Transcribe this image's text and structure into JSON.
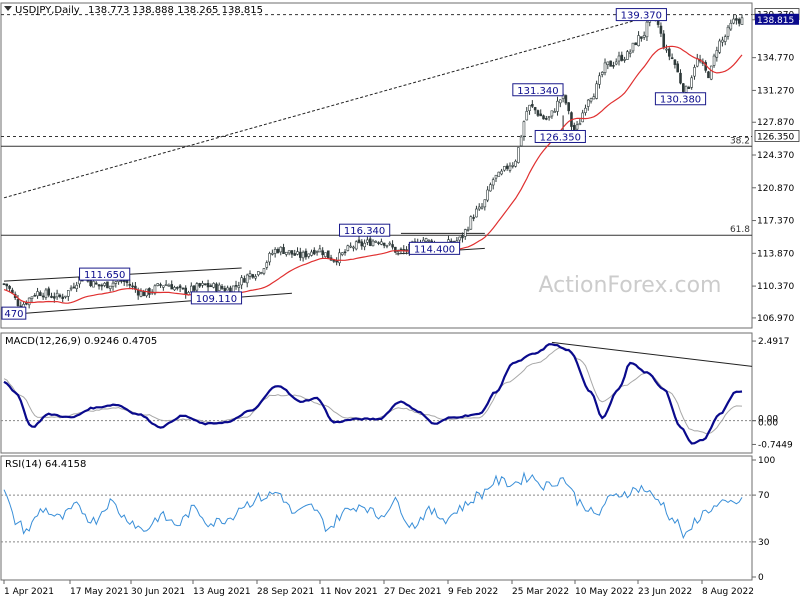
{
  "header": {
    "symbol": "USDJPY,Daily",
    "ohlc": "138.773 138.888 138.265 138.815",
    "watermark": "ActionForex.com"
  },
  "colors": {
    "up": "#2f3a3a",
    "ma": "#e03030",
    "macd": "#0a0a8c",
    "signal": "#a8a8a8",
    "rsi": "#3a8fd8",
    "hline": "#333333",
    "price_box": "#0a0a8c",
    "label_box_border": "#1a1a8a"
  },
  "chart_data": [
    {
      "type": "candlestick",
      "title": "USDJPY,Daily",
      "ylim": [
        106.0,
        140.5
      ],
      "yticks": [
        "139.370",
        "138.815",
        "134.770",
        "131.270",
        "127.870",
        "124.370",
        "120.870",
        "117.370",
        "113.870",
        "110.370",
        "106.970"
      ],
      "ytick_values": [
        139.37,
        138.815,
        134.77,
        131.27,
        127.87,
        124.37,
        120.87,
        117.37,
        113.87,
        110.37,
        106.97
      ],
      "current_price": "138.815",
      "xticks": [
        "1 Apr 2021",
        "17 May 2021",
        "30 Jun 2021",
        "13 Aug 2021",
        "28 Sep 2021",
        "11 Nov 2021",
        "27 Dec 2021",
        "9 Feb 2022",
        "25 Mar 2022",
        "10 May 2022",
        "23 Jun 2022",
        "8 Aug 2022"
      ],
      "anchors": [
        {
          "i": 0,
          "v": 110.6
        },
        {
          "i": 6,
          "v": 108.4
        },
        {
          "i": 12,
          "v": 109.7
        },
        {
          "i": 20,
          "v": 109.2
        },
        {
          "i": 28,
          "v": 111.2
        },
        {
          "i": 34,
          "v": 110.4
        },
        {
          "i": 42,
          "v": 110.9
        },
        {
          "i": 50,
          "v": 109.6
        },
        {
          "i": 58,
          "v": 110.6
        },
        {
          "i": 64,
          "v": 109.8
        },
        {
          "i": 72,
          "v": 110.4
        },
        {
          "i": 80,
          "v": 110.1
        },
        {
          "i": 90,
          "v": 111.8
        },
        {
          "i": 98,
          "v": 114.3
        },
        {
          "i": 106,
          "v": 113.6
        },
        {
          "i": 112,
          "v": 114.3
        },
        {
          "i": 118,
          "v": 113.3
        },
        {
          "i": 126,
          "v": 114.7
        },
        {
          "i": 134,
          "v": 115.3
        },
        {
          "i": 142,
          "v": 114.0
        },
        {
          "i": 150,
          "v": 115.3
        },
        {
          "i": 156,
          "v": 114.6
        },
        {
          "i": 162,
          "v": 115.2
        },
        {
          "i": 170,
          "v": 118.5
        },
        {
          "i": 176,
          "v": 122.0
        },
        {
          "i": 182,
          "v": 123.5
        },
        {
          "i": 188,
          "v": 129.5
        },
        {
          "i": 194,
          "v": 128.2
        },
        {
          "i": 200,
          "v": 130.5
        },
        {
          "i": 204,
          "v": 127.0
        },
        {
          "i": 210,
          "v": 130.8
        },
        {
          "i": 216,
          "v": 134.0
        },
        {
          "i": 222,
          "v": 134.9
        },
        {
          "i": 228,
          "v": 137.0
        },
        {
          "i": 232,
          "v": 139.3
        },
        {
          "i": 238,
          "v": 135.0
        },
        {
          "i": 244,
          "v": 131.3
        },
        {
          "i": 248,
          "v": 134.5
        },
        {
          "i": 252,
          "v": 133.0
        },
        {
          "i": 256,
          "v": 136.4
        },
        {
          "i": 262,
          "v": 138.8
        }
      ],
      "levels": [
        {
          "value": 139.37,
          "style": "dashed",
          "label": "139.370"
        },
        {
          "value": 126.35,
          "style": "dashed",
          "label": "126.350"
        },
        {
          "value": 125.3,
          "style": "solid",
          "label": "38.2"
        },
        {
          "value": 115.8,
          "style": "solid",
          "label": "61.8"
        }
      ],
      "annotations": [
        {
          "text": "139.370",
          "i": 228,
          "v": 139.37
        },
        {
          "text": "131.340",
          "i": 191,
          "v": 131.34
        },
        {
          "text": "130.380",
          "i": 242,
          "v": 130.38
        },
        {
          "text": "126.350",
          "i": 199,
          "v": 126.35
        },
        {
          "text": "116.340",
          "i": 129,
          "v": 116.34
        },
        {
          "text": "114.400",
          "i": 154,
          "v": 114.4
        },
        {
          "text": "111.650",
          "i": 36,
          "v": 111.65
        },
        {
          "text": "109.110",
          "i": 76,
          "v": 109.11
        },
        {
          "text": "470",
          "i": 3,
          "v": 107.48
        }
      ]
    },
    {
      "type": "line",
      "title": "MACD(12,26,9) 0.9246 0.4705",
      "ylim": [
        -0.95,
        2.65
      ],
      "yticks": [
        "2.4917",
        "0.00",
        "0.00",
        "-0.7449"
      ],
      "ytick_values": [
        2.4917,
        0.0,
        0.0,
        -0.7449
      ],
      "macd_anchors": [
        {
          "i": 0,
          "v": 1.2
        },
        {
          "i": 4,
          "v": 0.9
        },
        {
          "i": 10,
          "v": -0.2
        },
        {
          "i": 16,
          "v": 0.2
        },
        {
          "i": 24,
          "v": 0.1
        },
        {
          "i": 32,
          "v": 0.4
        },
        {
          "i": 40,
          "v": 0.5
        },
        {
          "i": 48,
          "v": 0.2
        },
        {
          "i": 56,
          "v": -0.2
        },
        {
          "i": 64,
          "v": 0.15
        },
        {
          "i": 72,
          "v": -0.1
        },
        {
          "i": 80,
          "v": -0.05
        },
        {
          "i": 88,
          "v": 0.3
        },
        {
          "i": 98,
          "v": 1.1
        },
        {
          "i": 106,
          "v": 0.6
        },
        {
          "i": 112,
          "v": 0.7
        },
        {
          "i": 118,
          "v": -0.05
        },
        {
          "i": 126,
          "v": 0.05
        },
        {
          "i": 134,
          "v": 0.05
        },
        {
          "i": 142,
          "v": 0.6
        },
        {
          "i": 148,
          "v": 0.3
        },
        {
          "i": 154,
          "v": -0.1
        },
        {
          "i": 160,
          "v": 0.1
        },
        {
          "i": 170,
          "v": 0.2
        },
        {
          "i": 176,
          "v": 0.9
        },
        {
          "i": 182,
          "v": 1.8
        },
        {
          "i": 190,
          "v": 2.1
        },
        {
          "i": 196,
          "v": 2.4
        },
        {
          "i": 202,
          "v": 2.2
        },
        {
          "i": 210,
          "v": 0.9
        },
        {
          "i": 214,
          "v": 0.1
        },
        {
          "i": 220,
          "v": 1.0
        },
        {
          "i": 224,
          "v": 1.8
        },
        {
          "i": 230,
          "v": 1.5
        },
        {
          "i": 236,
          "v": 1.0
        },
        {
          "i": 242,
          "v": -0.2
        },
        {
          "i": 246,
          "v": -0.7
        },
        {
          "i": 250,
          "v": -0.6
        },
        {
          "i": 256,
          "v": 0.2
        },
        {
          "i": 262,
          "v": 0.92
        }
      ],
      "signal_anchors": [
        {
          "i": 0,
          "v": 1.3
        },
        {
          "i": 6,
          "v": 0.8
        },
        {
          "i": 12,
          "v": 0.1
        },
        {
          "i": 20,
          "v": 0.1
        },
        {
          "i": 30,
          "v": 0.3
        },
        {
          "i": 40,
          "v": 0.4
        },
        {
          "i": 50,
          "v": 0.2
        },
        {
          "i": 58,
          "v": 0.0
        },
        {
          "i": 66,
          "v": 0.05
        },
        {
          "i": 76,
          "v": -0.05
        },
        {
          "i": 86,
          "v": 0.1
        },
        {
          "i": 96,
          "v": 0.8
        },
        {
          "i": 104,
          "v": 0.8
        },
        {
          "i": 114,
          "v": 0.5
        },
        {
          "i": 122,
          "v": 0.1
        },
        {
          "i": 132,
          "v": 0.05
        },
        {
          "i": 142,
          "v": 0.4
        },
        {
          "i": 150,
          "v": 0.2
        },
        {
          "i": 158,
          "v": 0.05
        },
        {
          "i": 170,
          "v": 0.1
        },
        {
          "i": 180,
          "v": 1.2
        },
        {
          "i": 190,
          "v": 1.8
        },
        {
          "i": 200,
          "v": 2.3
        },
        {
          "i": 206,
          "v": 1.9
        },
        {
          "i": 214,
          "v": 0.6
        },
        {
          "i": 222,
          "v": 1.1
        },
        {
          "i": 230,
          "v": 1.5
        },
        {
          "i": 238,
          "v": 0.9
        },
        {
          "i": 246,
          "v": -0.3
        },
        {
          "i": 252,
          "v": -0.4
        },
        {
          "i": 262,
          "v": 0.47
        }
      ]
    },
    {
      "type": "line",
      "title": "RSI(14) 64.4158",
      "ylim": [
        0,
        100
      ],
      "yticks": [
        "100",
        "70",
        "30",
        "0"
      ],
      "ytick_values": [
        100,
        70,
        30,
        0
      ],
      "levels": [
        70,
        30
      ],
      "anchors": [
        {
          "i": 0,
          "v": 72
        },
        {
          "i": 4,
          "v": 48
        },
        {
          "i": 8,
          "v": 40
        },
        {
          "i": 14,
          "v": 58
        },
        {
          "i": 20,
          "v": 50
        },
        {
          "i": 26,
          "v": 60
        },
        {
          "i": 32,
          "v": 48
        },
        {
          "i": 38,
          "v": 64
        },
        {
          "i": 44,
          "v": 50
        },
        {
          "i": 50,
          "v": 40
        },
        {
          "i": 56,
          "v": 52
        },
        {
          "i": 62,
          "v": 45
        },
        {
          "i": 68,
          "v": 58
        },
        {
          "i": 74,
          "v": 46
        },
        {
          "i": 80,
          "v": 50
        },
        {
          "i": 86,
          "v": 62
        },
        {
          "i": 92,
          "v": 68
        },
        {
          "i": 98,
          "v": 72
        },
        {
          "i": 104,
          "v": 54
        },
        {
          "i": 110,
          "v": 60
        },
        {
          "i": 116,
          "v": 42
        },
        {
          "i": 122,
          "v": 56
        },
        {
          "i": 128,
          "v": 62
        },
        {
          "i": 134,
          "v": 52
        },
        {
          "i": 140,
          "v": 64
        },
        {
          "i": 146,
          "v": 44
        },
        {
          "i": 152,
          "v": 56
        },
        {
          "i": 158,
          "v": 50
        },
        {
          "i": 164,
          "v": 60
        },
        {
          "i": 170,
          "v": 70
        },
        {
          "i": 176,
          "v": 82
        },
        {
          "i": 182,
          "v": 80
        },
        {
          "i": 188,
          "v": 86
        },
        {
          "i": 194,
          "v": 78
        },
        {
          "i": 200,
          "v": 84
        },
        {
          "i": 206,
          "v": 64
        },
        {
          "i": 212,
          "v": 52
        },
        {
          "i": 216,
          "v": 66
        },
        {
          "i": 222,
          "v": 72
        },
        {
          "i": 228,
          "v": 76
        },
        {
          "i": 234,
          "v": 66
        },
        {
          "i": 240,
          "v": 48
        },
        {
          "i": 244,
          "v": 34
        },
        {
          "i": 248,
          "v": 50
        },
        {
          "i": 252,
          "v": 58
        },
        {
          "i": 258,
          "v": 62
        },
        {
          "i": 262,
          "v": 64
        }
      ]
    }
  ]
}
